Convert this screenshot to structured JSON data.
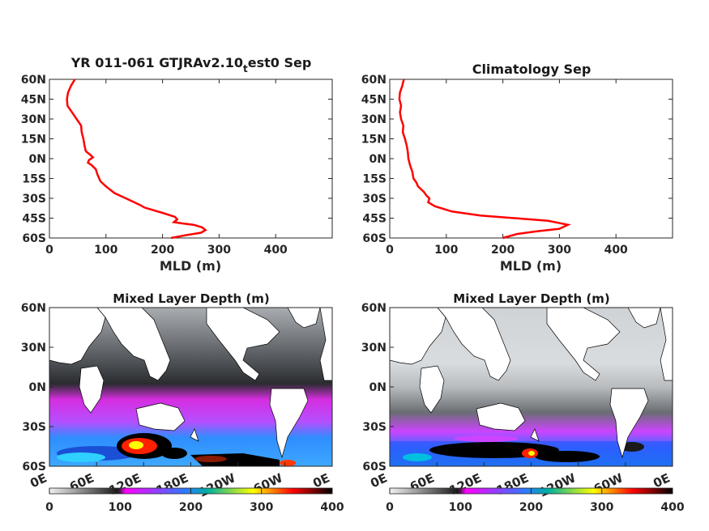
{
  "colors": {
    "profile_line": "#ff0000",
    "axes": "#262626",
    "land": "#ffffff",
    "ocean_colormap": [
      "#f2f2f2",
      "#1a1a1a",
      "#ff00ff",
      "#1e90ff",
      "#ffff00",
      "#ff0000",
      "#000000"
    ]
  },
  "chart_data": [
    {
      "type": "line",
      "title_main": "YR 011-061 GTJRAv2.10",
      "title_sub": "t",
      "title_tail": "est0 Sep",
      "xlabel": "MLD (m)",
      "ylabel": "",
      "xlim": [
        0,
        500
      ],
      "ylim": [
        -60,
        60
      ],
      "xticks": [
        "0",
        "100",
        "200",
        "300",
        "400"
      ],
      "yticks": [
        "60N",
        "45N",
        "30N",
        "15N",
        "0N",
        "15S",
        "30S",
        "45S",
        "60S"
      ],
      "series": [
        {
          "x": [
            45,
            38,
            33,
            31,
            32,
            40,
            48,
            56,
            57,
            60,
            62,
            63,
            64,
            66,
            72,
            77,
            70,
            68,
            75,
            82,
            85,
            90,
            100,
            115,
            135,
            150,
            160,
            168,
            200,
            222,
            226,
            220,
            235,
            255,
            270,
            276,
            268,
            240,
            215
          ],
          "y": [
            60,
            55,
            50,
            45,
            40,
            35,
            30,
            25,
            20,
            15,
            10,
            8,
            6,
            5,
            3,
            1,
            -1,
            -3,
            -5,
            -8,
            -12,
            -17,
            -21,
            -26,
            -30,
            -33,
            -35,
            -37,
            -41,
            -44,
            -46,
            -48,
            -49,
            -50,
            -52,
            -54,
            -56,
            -58,
            -60
          ]
        }
      ]
    },
    {
      "type": "line",
      "title": "Climatology Sep",
      "xlabel": "MLD (m)",
      "ylabel": "",
      "xlim": [
        0,
        500
      ],
      "ylim": [
        -60,
        60
      ],
      "xticks": [
        "0",
        "100",
        "200",
        "300",
        "400"
      ],
      "yticks": [
        "60N",
        "45N",
        "30N",
        "15N",
        "0N",
        "15S",
        "30S",
        "45S",
        "60S"
      ],
      "series": [
        {
          "x": [
            25,
            22,
            18,
            17,
            20,
            18,
            20,
            24,
            23,
            27,
            30,
            32,
            33,
            36,
            40,
            42,
            47,
            50,
            60,
            65,
            70,
            68,
            80,
            110,
            160,
            220,
            280,
            315,
            300,
            260,
            225,
            200
          ],
          "y": [
            60,
            55,
            50,
            45,
            40,
            35,
            30,
            25,
            20,
            15,
            10,
            5,
            0,
            -5,
            -10,
            -15,
            -18,
            -21,
            -25,
            -28,
            -30,
            -33,
            -36,
            -40,
            -43,
            -45,
            -47,
            -50,
            -53,
            -55,
            -57,
            -60
          ]
        }
      ]
    },
    {
      "type": "heatmap",
      "title": "Mixed Layer Depth (m)",
      "yticks": [
        "60N",
        "30N",
        "0N",
        "30S",
        "60S"
      ],
      "xticks": [
        "0E",
        "60E",
        "120E",
        "180E",
        "120W",
        "60W",
        "0E"
      ],
      "colorbar_ticks": [
        "0",
        "100",
        "200",
        "300",
        "400"
      ],
      "clim": [
        0,
        400
      ]
    },
    {
      "type": "heatmap",
      "title": "Mixed Layer Depth (m)",
      "yticks": [
        "60N",
        "30N",
        "0N",
        "30S",
        "60S"
      ],
      "xticks": [
        "0E",
        "60E",
        "120E",
        "180E",
        "120W",
        "60W",
        "0E"
      ],
      "colorbar_ticks": [
        "0",
        "100",
        "200",
        "300",
        "400"
      ],
      "clim": [
        0,
        400
      ]
    }
  ]
}
